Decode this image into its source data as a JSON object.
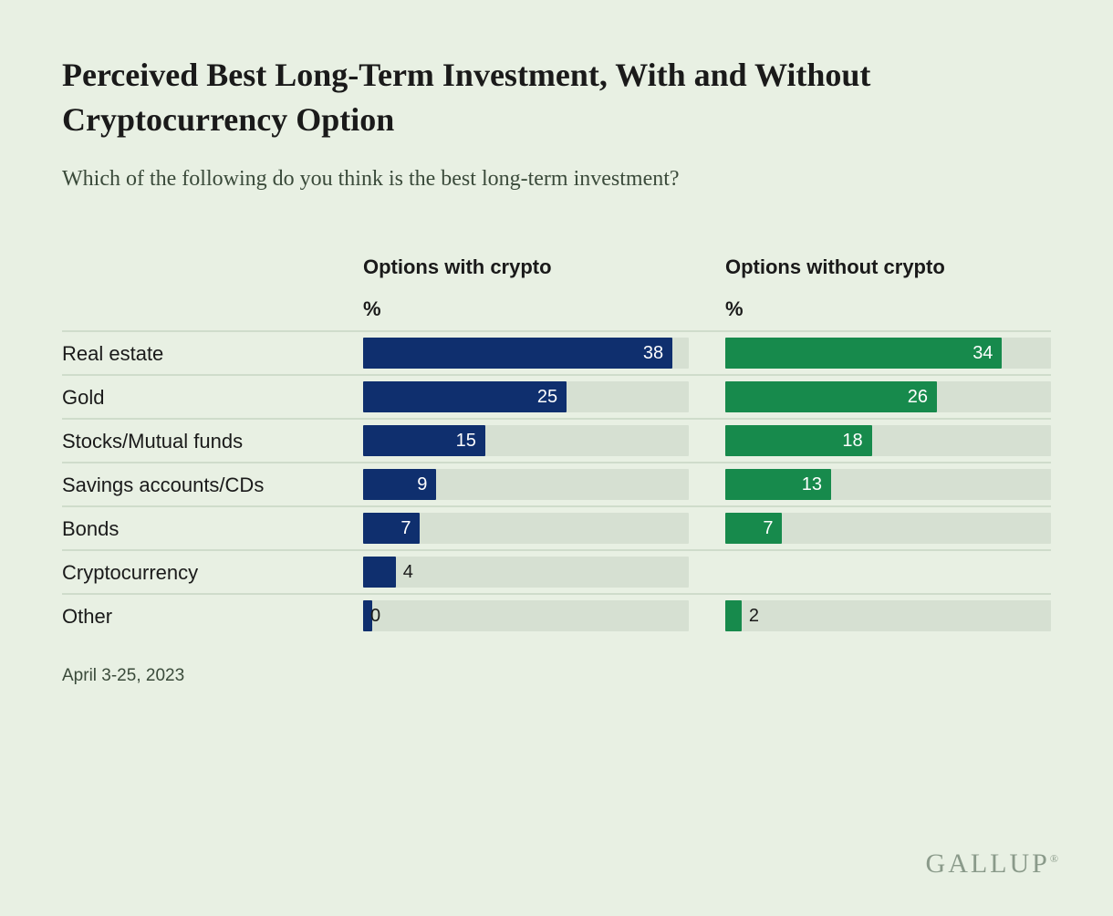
{
  "title": "Perceived Best Long-Term Investment, With and Without Cryptocurrency Option",
  "subtitle": "Which of the following do you think is the best long-term investment?",
  "date_note": "April 3-25, 2023",
  "brand": "GALLUP",
  "chart": {
    "type": "grouped-horizontal-bar",
    "max_value": 40,
    "track_color": "#d6e0d2",
    "background_color": "#e8f0e3",
    "rule_color": "#cfdccb",
    "label_fontsize": 22,
    "value_fontsize": 20,
    "header_fontsize": 22,
    "columns": [
      {
        "key": "with",
        "header": "Options with crypto",
        "unit": "%",
        "color": "#0f2f6e"
      },
      {
        "key": "without",
        "header": "Options without crypto",
        "unit": "%",
        "color": "#178a4c"
      }
    ],
    "rows": [
      {
        "label": "Real estate",
        "with": 38,
        "without": 34
      },
      {
        "label": "Gold",
        "with": 25,
        "without": 26
      },
      {
        "label": "Stocks/Mutual funds",
        "with": 15,
        "without": 18
      },
      {
        "label": "Savings accounts/CDs",
        "with": 9,
        "without": 13
      },
      {
        "label": "Bonds",
        "with": 7,
        "without": 7
      },
      {
        "label": "Cryptocurrency",
        "with": 4,
        "without": null
      },
      {
        "label": "Other",
        "with": 0,
        "without": 2
      }
    ]
  }
}
